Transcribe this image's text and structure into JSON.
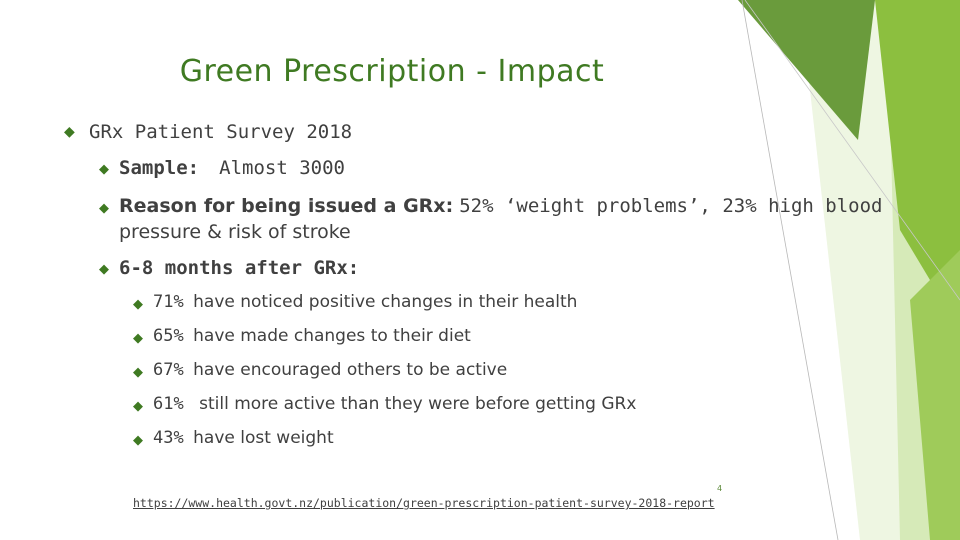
{
  "slide": {
    "title": "Green Prescription - Impact",
    "survey_heading": "GRx Patient Survey 2018",
    "sample": {
      "label": "Sample:",
      "value": "Almost 3000"
    },
    "reason": {
      "label": "Reason for being issued a GRx:",
      "line1_rest": "52% ‘weight problems’, 23% high blood",
      "line2": "pressure & risk of stroke"
    },
    "months_heading": "6-8 months after GRx:",
    "results": [
      {
        "percent": "71%",
        "text": "have noticed positive changes in their health"
      },
      {
        "percent": "65%",
        "text": "have made changes to their diet"
      },
      {
        "percent": "67%",
        "text": "have encouraged others to be active"
      },
      {
        "percent": "61%",
        "text": "still more active than they were before getting GRx"
      },
      {
        "percent": "43%",
        "text": "have lost weight"
      }
    ],
    "source_url": "https://www.health.govt.nz/publication/green-prescription-patient-survey-2018-report",
    "page_number": "4",
    "bullet_glyph": "◆"
  },
  "colors": {
    "title": "#3f7a22",
    "bullet": "#3f7a22",
    "text": "#404040",
    "deco_dark": "#6a9b3c",
    "deco_mid": "#8cbf3f",
    "deco_light": "#d6eab8"
  }
}
